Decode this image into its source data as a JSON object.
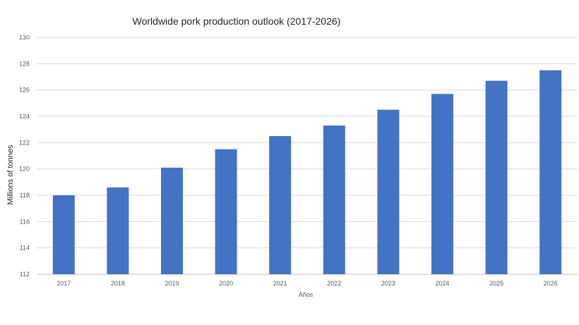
{
  "chart_data": {
    "type": "bar",
    "title": "Worldwide pork production outlook (2017-2026)",
    "xlabel": "Años",
    "ylabel": "Millions of tonnes",
    "categories": [
      "2017",
      "2018",
      "2019",
      "2020",
      "2021",
      "2022",
      "2023",
      "2024",
      "2025",
      "2026"
    ],
    "values": [
      118.0,
      118.6,
      120.1,
      121.5,
      122.5,
      123.3,
      124.5,
      125.7,
      126.7,
      127.5
    ],
    "ylim": [
      112,
      130
    ],
    "yticks": [
      "112",
      "114",
      "116",
      "118",
      "120",
      "122",
      "124",
      "126",
      "128",
      "130"
    ],
    "grid": true,
    "legend": "none",
    "colors": {
      "bar": "#4472c4"
    }
  }
}
